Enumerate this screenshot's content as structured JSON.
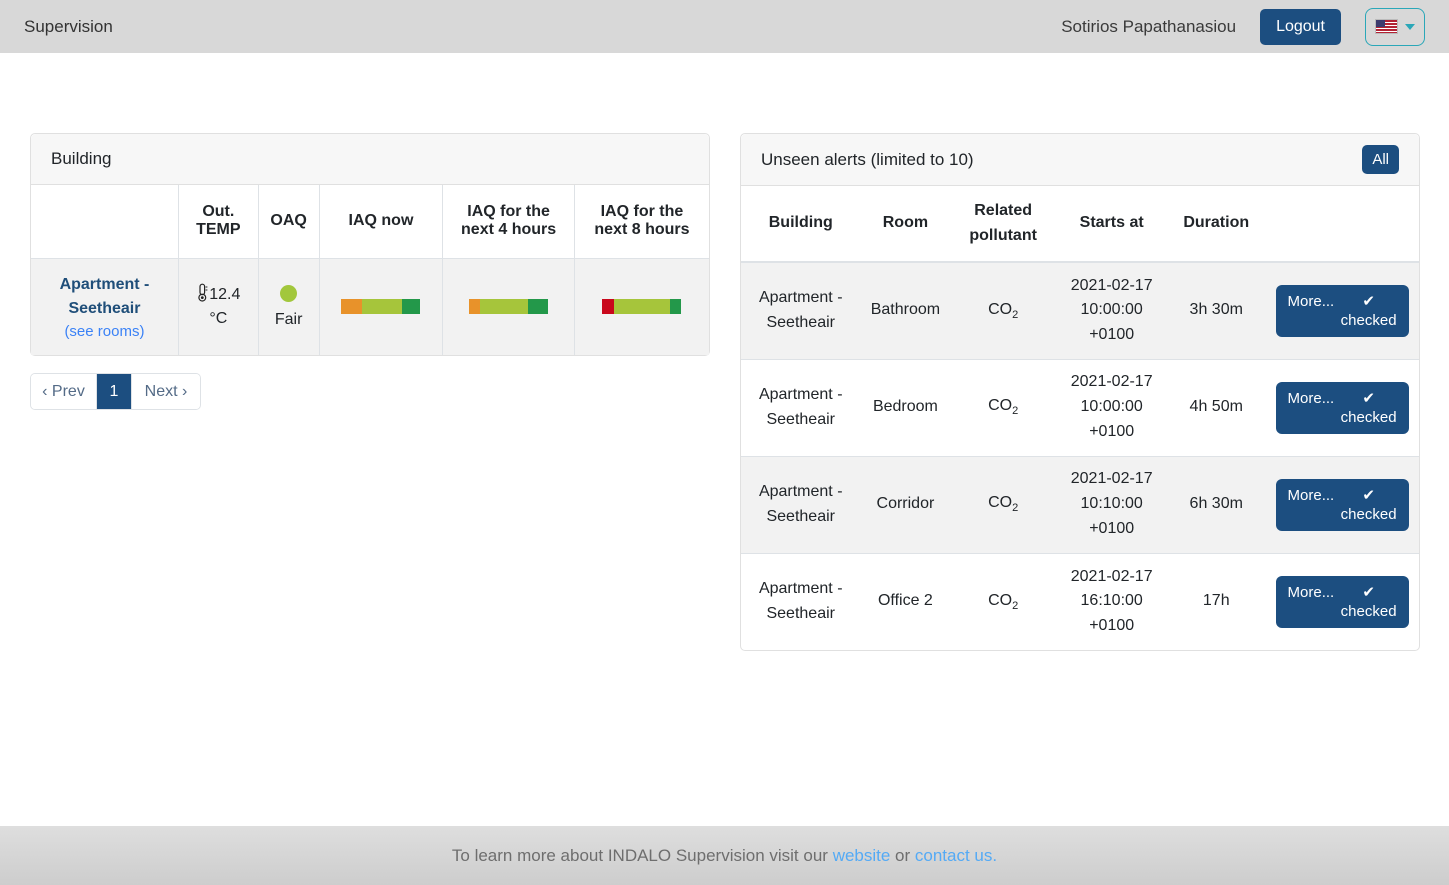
{
  "navbar": {
    "brand": "Supervision",
    "user_name": "Sotirios Papathanasiou",
    "logout_label": "Logout"
  },
  "building_panel": {
    "title": "Building",
    "columns": [
      "",
      "Out. TEMP",
      "OAQ",
      "IAQ now",
      "IAQ for the next 4 hours",
      "IAQ for the next 8 hours"
    ],
    "row": {
      "name": "Apartment - Seetheair",
      "see_rooms_label": "(see rooms)",
      "out_temp": "12.4 °C",
      "oaq_label": "Fair",
      "oaq_color": "#a2c73c",
      "iaq_now": {
        "segments": [
          {
            "color": "#e8922a",
            "pct": 26
          },
          {
            "color": "#a6c53b",
            "pct": 51
          },
          {
            "color": "#23984a",
            "pct": 23
          }
        ]
      },
      "iaq_next_4h": {
        "segments": [
          {
            "color": "#e8922a",
            "pct": 14
          },
          {
            "color": "#a6c53b",
            "pct": 61
          },
          {
            "color": "#23984a",
            "pct": 25
          }
        ]
      },
      "iaq_next_8h": {
        "segments": [
          {
            "color": "#c9081c",
            "pct": 15
          },
          {
            "color": "#a6c53b",
            "pct": 71
          },
          {
            "color": "#23984a",
            "pct": 14
          }
        ]
      }
    },
    "pagination": {
      "prev_label": "‹ Prev",
      "current_page": "1",
      "next_label": "Next ›"
    }
  },
  "alerts_panel": {
    "title": "Unseen alerts (limited to 10)",
    "all_label": "All",
    "columns": [
      "Building",
      "Room",
      "Related pollutant",
      "Starts at",
      "Duration",
      ""
    ],
    "rows": [
      {
        "building": "Apartment - Seetheair",
        "room": "Bathroom",
        "pollutant": "CO",
        "pollutant_sub": "2",
        "starts_at": "2021-02-17 10:00:00 +0100",
        "duration": "3h 30m",
        "more_label": "More...",
        "checked_icon": "✔",
        "checked_label": "checked"
      },
      {
        "building": "Apartment - Seetheair",
        "room": "Bedroom",
        "pollutant": "CO",
        "pollutant_sub": "2",
        "starts_at": "2021-02-17 10:00:00 +0100",
        "duration": "4h 50m",
        "more_label": "More...",
        "checked_icon": "✔",
        "checked_label": "checked"
      },
      {
        "building": "Apartment - Seetheair",
        "room": "Corridor",
        "pollutant": "CO",
        "pollutant_sub": "2",
        "starts_at": "2021-02-17 10:10:00 +0100",
        "duration": "6h 30m",
        "more_label": "More...",
        "checked_icon": "✔",
        "checked_label": "checked"
      },
      {
        "building": "Apartment - Seetheair",
        "room": "Office 2",
        "pollutant": "CO",
        "pollutant_sub": "2",
        "starts_at": "2021-02-17 16:10:00 +0100",
        "duration": "17h",
        "more_label": "More...",
        "checked_icon": "✔",
        "checked_label": "checked"
      }
    ]
  },
  "footer": {
    "prefix": "To learn more about INDALO Supervision visit our ",
    "website_link": "website",
    "middle": " or ",
    "contact_link": "contact us."
  },
  "colors": {
    "accent_navy": "#1c4e80",
    "navbar_gray": "#d8d8d8",
    "teal_border": "#2aa7b8",
    "link_blue": "#3b82f6",
    "iaq_orange": "#e8922a",
    "iaq_yellowgreen": "#a6c53b",
    "iaq_green": "#23984a",
    "iaq_red": "#c9081c"
  }
}
